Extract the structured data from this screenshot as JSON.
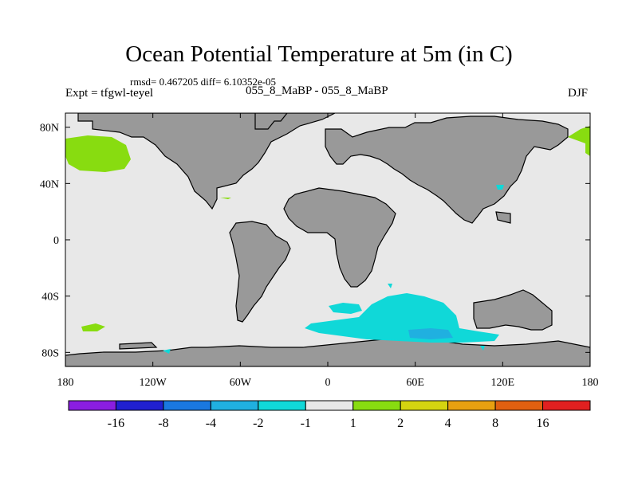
{
  "chart_data": {
    "type": "heatmap",
    "title": "Ocean Potential Temperature at 5m (in C)",
    "stats_text": "rmsd= 0.467205 diff= 6.10352e-05",
    "left_label": "Expt = tfgwl-teyel",
    "center_label": "055_8_MaBP - 055_8_MaBP",
    "right_label": "DJF",
    "projection": "cylindrical equidistant",
    "xlim": [
      180,
      540
    ],
    "ylim": [
      -90,
      90
    ],
    "x_ticks": [
      {
        "value": 180,
        "label": "180"
      },
      {
        "value": 240,
        "label": "120W"
      },
      {
        "value": 300,
        "label": "60W"
      },
      {
        "value": 360,
        "label": "0"
      },
      {
        "value": 420,
        "label": "60E"
      },
      {
        "value": 480,
        "label": "120E"
      },
      {
        "value": 540,
        "label": "180"
      }
    ],
    "y_ticks": [
      {
        "value": 80,
        "label": "80N"
      },
      {
        "value": 40,
        "label": "40N"
      },
      {
        "value": 0,
        "label": "0"
      },
      {
        "value": -40,
        "label": "40S"
      },
      {
        "value": -80,
        "label": "80S"
      }
    ],
    "land_color": "#999999",
    "ocean_color": "#e8e8e8",
    "colorbar": {
      "colors": [
        "#8a1ee0",
        "#2020d0",
        "#1a78e0",
        "#20b0e0",
        "#10d8d8",
        "#e8e8e8",
        "#88dc10",
        "#d4d410",
        "#e8a010",
        "#e06010",
        "#e02020"
      ],
      "labels": [
        "-16",
        "-8",
        "-4",
        "-2",
        "-1",
        "1",
        "2",
        "4",
        "8",
        "16"
      ]
    },
    "anomaly_regions": [
      {
        "name": "north-pacific",
        "bin": "1 to 2",
        "color": "#88dc10"
      },
      {
        "name": "north-pacific-east-edge",
        "bin": "1 to 2",
        "color": "#88dc10"
      },
      {
        "name": "south-pacific",
        "bin": "1 to 2",
        "color": "#88dc10"
      },
      {
        "name": "subtropical-atlantic",
        "bin": "1 to 2",
        "color": "#88dc10"
      },
      {
        "name": "southern-ocean-indian",
        "bin": "-2 to -1",
        "color": "#10d8d8"
      },
      {
        "name": "southern-ocean-indian-core",
        "bin": "-4 to -2",
        "color": "#20b0e0"
      },
      {
        "name": "southern-atlantic",
        "bin": "-2 to -1",
        "color": "#10d8d8"
      },
      {
        "name": "east-asia-coast",
        "bin": "-2 to -1",
        "color": "#10d8d8"
      }
    ]
  }
}
